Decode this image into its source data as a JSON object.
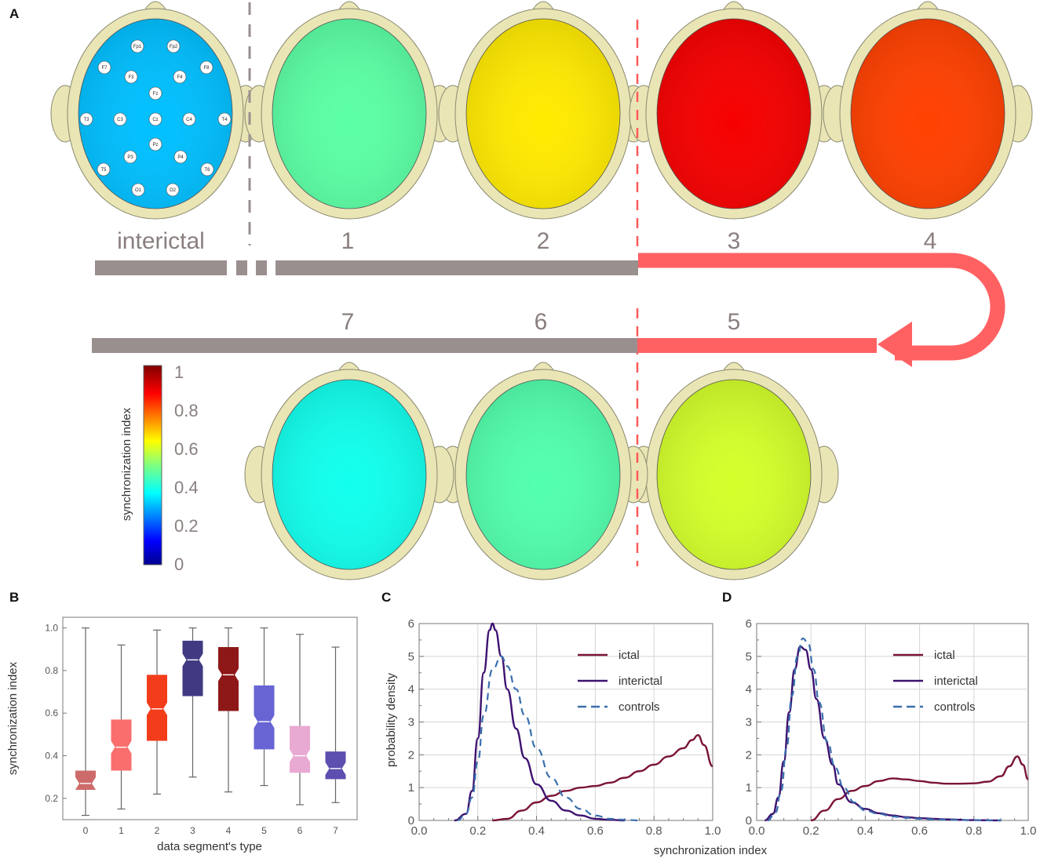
{
  "panel_labels": {
    "a": "A",
    "b": "B",
    "c": "C",
    "d": "D"
  },
  "panel_a": {
    "segments": [
      {
        "id": "interictal",
        "label": "interictal",
        "value": 0.3
      },
      {
        "id": "s1",
        "label": "1",
        "value": 0.46
      },
      {
        "id": "s2",
        "label": "2",
        "value": 0.64
      },
      {
        "id": "s3",
        "label": "3",
        "value": 0.87
      },
      {
        "id": "s4",
        "label": "4",
        "value": 0.8
      },
      {
        "id": "s5",
        "label": "5",
        "value": 0.58
      },
      {
        "id": "s6",
        "label": "6",
        "value": 0.45
      },
      {
        "id": "s7",
        "label": "7",
        "value": 0.38
      }
    ],
    "electrodes": [
      "Fp1",
      "Fp2",
      "F7",
      "F3",
      "F4",
      "F8",
      "Fz",
      "T3",
      "C3",
      "Cz",
      "C4",
      "T4",
      "Pz",
      "P3",
      "P4",
      "T5",
      "T6",
      "O1",
      "O2"
    ],
    "colorbar": {
      "label": "synchronization index",
      "ticks": [
        "0",
        "0.2",
        "0.4",
        "0.6",
        "0.8",
        "1"
      ]
    },
    "colors": {
      "timeline_gray": "#9a8f8f",
      "ictal_red": "#ff6163",
      "dashed_gray": "#9a8f8f",
      "dashed_red": "#ff5a5a",
      "head_fill": "#eae5b5",
      "head_stroke": "#8a8a70"
    }
  },
  "chart_data": [
    {
      "panel": "B",
      "type": "box",
      "title": "",
      "xlabel": "data segment's type",
      "ylabel": "synchronization index",
      "categories": [
        "0",
        "1",
        "2",
        "3",
        "4",
        "5",
        "6",
        "7"
      ],
      "ylim": [
        0.1,
        1.05
      ],
      "yticks": [
        "0.2",
        "0.4",
        "0.6",
        "0.8",
        "1.0"
      ],
      "boxes": [
        {
          "min": 0.12,
          "q1": 0.24,
          "median": 0.27,
          "q3": 0.33,
          "max": 1.0,
          "color": "#cd6b6b"
        },
        {
          "min": 0.15,
          "q1": 0.33,
          "median": 0.44,
          "q3": 0.57,
          "max": 0.92,
          "color": "#fb6e6e"
        },
        {
          "min": 0.22,
          "q1": 0.47,
          "median": 0.62,
          "q3": 0.78,
          "max": 0.99,
          "color": "#f23c1a"
        },
        {
          "min": 0.3,
          "q1": 0.68,
          "median": 0.85,
          "q3": 0.94,
          "max": 1.0,
          "color": "#403a82"
        },
        {
          "min": 0.23,
          "q1": 0.61,
          "median": 0.78,
          "q3": 0.91,
          "max": 1.0,
          "color": "#8e1818"
        },
        {
          "min": 0.26,
          "q1": 0.43,
          "median": 0.56,
          "q3": 0.73,
          "max": 1.0,
          "color": "#6864d4"
        },
        {
          "min": 0.17,
          "q1": 0.32,
          "median": 0.4,
          "q3": 0.54,
          "max": 0.97,
          "color": "#e8aad2"
        },
        {
          "min": 0.18,
          "q1": 0.29,
          "median": 0.34,
          "q3": 0.42,
          "max": 0.91,
          "color": "#5d4fb0"
        }
      ]
    },
    {
      "panel": "C",
      "type": "line",
      "ylabel": "probability density",
      "xlabel": "synchronization index",
      "xlim": [
        0,
        1
      ],
      "ylim": [
        0,
        6
      ],
      "xticks": [
        "0.0",
        "0.2",
        "0.4",
        "0.6",
        "0.8",
        "1.0"
      ],
      "yticks": [
        "0",
        "1",
        "2",
        "3",
        "4",
        "5",
        "6"
      ],
      "legend": [
        "ictal",
        "interictal",
        "controls"
      ],
      "series": [
        {
          "name": "ictal",
          "color": "#7b1437",
          "dash": false,
          "x": [
            0.25,
            0.3,
            0.35,
            0.4,
            0.45,
            0.5,
            0.55,
            0.6,
            0.65,
            0.7,
            0.75,
            0.8,
            0.85,
            0.9,
            0.93,
            0.95,
            0.97,
            1.0
          ],
          "y": [
            0,
            0.05,
            0.3,
            0.55,
            0.75,
            0.9,
            1.0,
            1.05,
            1.15,
            1.3,
            1.5,
            1.7,
            1.95,
            2.2,
            2.45,
            2.6,
            2.3,
            1.65
          ]
        },
        {
          "name": "interictal",
          "color": "#3d1270",
          "dash": false,
          "x": [
            0.12,
            0.16,
            0.18,
            0.2,
            0.22,
            0.24,
            0.25,
            0.26,
            0.28,
            0.3,
            0.33,
            0.36,
            0.4,
            0.45,
            0.5,
            0.55,
            0.6,
            0.65,
            0.7
          ],
          "y": [
            0,
            0.2,
            0.9,
            2.5,
            4.5,
            5.8,
            6.0,
            5.8,
            5.0,
            4.0,
            2.8,
            1.9,
            1.1,
            0.6,
            0.3,
            0.15,
            0.05,
            0.02,
            0
          ]
        },
        {
          "name": "controls",
          "color": "#3a6fae",
          "dash": true,
          "x": [
            0.13,
            0.16,
            0.18,
            0.2,
            0.22,
            0.25,
            0.28,
            0.3,
            0.33,
            0.36,
            0.4,
            0.45,
            0.5,
            0.55,
            0.6,
            0.65,
            0.7,
            0.75
          ],
          "y": [
            0,
            0.2,
            0.7,
            1.8,
            3.2,
            4.6,
            5.0,
            4.7,
            4.0,
            3.2,
            2.2,
            1.3,
            0.7,
            0.35,
            0.15,
            0.05,
            0.02,
            0
          ]
        }
      ]
    },
    {
      "panel": "D",
      "type": "line",
      "ylabel": "",
      "xlabel": "",
      "xlim": [
        0,
        1
      ],
      "ylim": [
        0,
        6
      ],
      "xticks": [
        "0.0",
        "0.2",
        "0.4",
        "0.6",
        "0.8",
        "1.0"
      ],
      "yticks": [
        "0",
        "1",
        "2",
        "3",
        "4",
        "5",
        "6"
      ],
      "legend": [
        "ictal",
        "interictal",
        "controls"
      ],
      "series": [
        {
          "name": "ictal",
          "color": "#7b1437",
          "dash": false,
          "x": [
            0.2,
            0.25,
            0.3,
            0.35,
            0.4,
            0.45,
            0.5,
            0.55,
            0.6,
            0.65,
            0.7,
            0.75,
            0.8,
            0.85,
            0.9,
            0.93,
            0.96,
            0.98,
            1.0
          ],
          "y": [
            0,
            0.3,
            0.65,
            0.9,
            1.05,
            1.2,
            1.28,
            1.25,
            1.2,
            1.15,
            1.12,
            1.12,
            1.13,
            1.18,
            1.35,
            1.65,
            1.95,
            1.7,
            1.25
          ]
        },
        {
          "name": "interictal",
          "color": "#3d1270",
          "dash": false,
          "x": [
            0.03,
            0.06,
            0.08,
            0.1,
            0.12,
            0.14,
            0.16,
            0.18,
            0.2,
            0.22,
            0.25,
            0.28,
            0.3,
            0.35,
            0.4,
            0.45,
            0.5,
            0.55,
            0.6,
            0.65,
            0.7,
            0.8,
            0.9
          ],
          "y": [
            0,
            0.2,
            0.7,
            1.8,
            3.3,
            4.6,
            5.3,
            5.2,
            4.6,
            3.7,
            2.5,
            1.7,
            1.1,
            0.55,
            0.35,
            0.22,
            0.15,
            0.1,
            0.07,
            0.05,
            0.03,
            0.01,
            0
          ]
        },
        {
          "name": "controls",
          "color": "#3a6fae",
          "dash": true,
          "x": [
            0.04,
            0.07,
            0.09,
            0.11,
            0.13,
            0.15,
            0.17,
            0.19,
            0.21,
            0.23,
            0.26,
            0.29,
            0.32,
            0.36,
            0.4,
            0.45,
            0.5,
            0.55,
            0.6,
            0.65,
            0.7,
            0.8,
            0.9
          ],
          "y": [
            0,
            0.25,
            0.9,
            2.2,
            3.8,
            5.0,
            5.55,
            5.4,
            4.6,
            3.6,
            2.4,
            1.6,
            1.0,
            0.55,
            0.3,
            0.2,
            0.12,
            0.08,
            0.05,
            0.03,
            0.02,
            0.01,
            0
          ]
        }
      ]
    }
  ]
}
